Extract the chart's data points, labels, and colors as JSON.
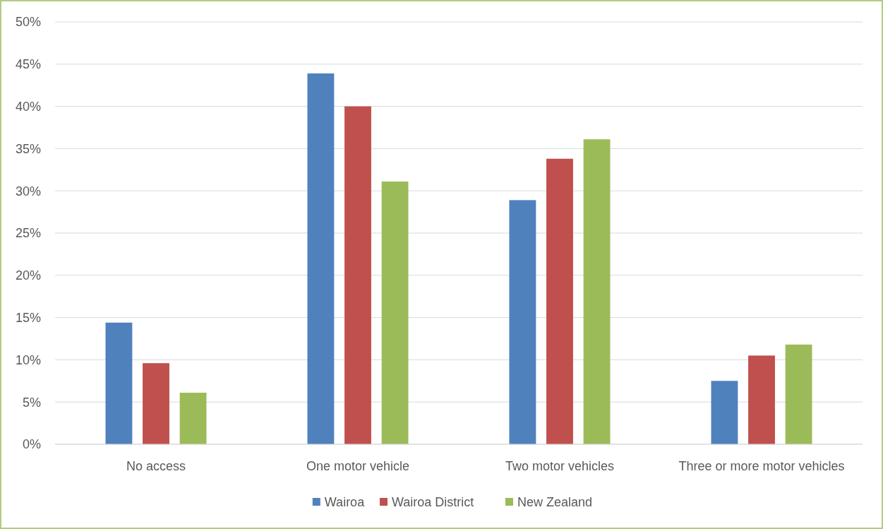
{
  "chart_data": {
    "type": "bar",
    "categories": [
      "No access",
      "One motor vehicle",
      "Two motor vehicles",
      "Three or more motor vehicles"
    ],
    "series": [
      {
        "name": "Wairoa",
        "color": "#4f81bd",
        "values": [
          14.4,
          43.9,
          28.9,
          7.5
        ]
      },
      {
        "name": "Wairoa District",
        "color": "#c0504d",
        "values": [
          9.6,
          40.0,
          33.8,
          10.5
        ]
      },
      {
        "name": "New Zealand",
        "color": "#9bbb59",
        "values": [
          6.1,
          31.1,
          36.1,
          11.8
        ]
      }
    ],
    "ylim": [
      0,
      50
    ],
    "yticks": [
      {
        "value": 0,
        "label": "0%"
      },
      {
        "value": 5,
        "label": "5%"
      },
      {
        "value": 10,
        "label": "10%"
      },
      {
        "value": 15,
        "label": "15%"
      },
      {
        "value": 20,
        "label": "20%"
      },
      {
        "value": 25,
        "label": "25%"
      },
      {
        "value": 30,
        "label": "30%"
      },
      {
        "value": 35,
        "label": "35%"
      },
      {
        "value": 40,
        "label": "40%"
      },
      {
        "value": 45,
        "label": "45%"
      },
      {
        "value": 50,
        "label": "50%"
      }
    ],
    "grid": "y",
    "legend": "bottom"
  }
}
